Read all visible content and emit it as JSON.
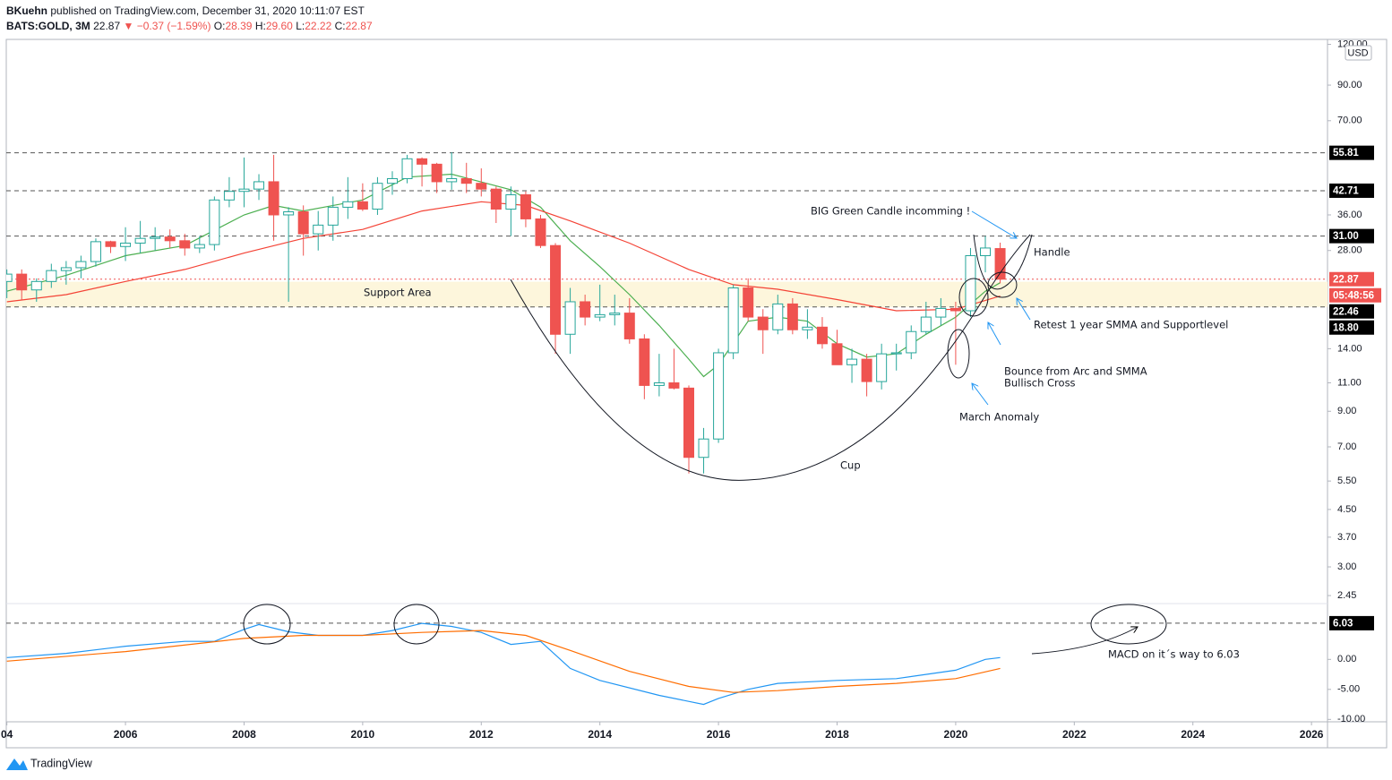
{
  "header": {
    "author": "BKuehn",
    "published": "published on TradingView.com, December 31, 2020 10:11:07 EST",
    "symbol": "BATS:GOLD, 3M",
    "last": "22.87",
    "change": "▼ −0.37 (−1.59%)",
    "ohlc": [
      {
        "label": "O:",
        "value": "28.39"
      },
      {
        "label": "H:",
        "value": "29.60"
      },
      {
        "label": "L:",
        "value": "22.22"
      },
      {
        "label": "C:",
        "value": "22.87"
      }
    ],
    "currency": "USD"
  },
  "footer": {
    "brand": "TradingView"
  },
  "chart_data": [
    {
      "type": "candlestick",
      "log_scale": true,
      "ylim": [
        2.33,
        123.5
      ],
      "xlim": [
        2003.99,
        2026.27
      ],
      "yticks": [
        {
          "value": 120,
          "label": "120.00"
        },
        {
          "value": 90,
          "label": "90.00"
        },
        {
          "value": 70,
          "label": "70.00"
        },
        {
          "value": 36,
          "label": "36.00"
        },
        {
          "value": 28,
          "label": "28.00"
        },
        {
          "value": 14,
          "label": "14.00"
        },
        {
          "value": 11,
          "label": "11.00"
        },
        {
          "value": 9,
          "label": "9.00"
        },
        {
          "value": 7,
          "label": "7.00"
        },
        {
          "value": 5.5,
          "label": "5.50"
        },
        {
          "value": 4.5,
          "label": "4.50"
        },
        {
          "value": 3.7,
          "label": "3.70"
        },
        {
          "value": 3,
          "label": "3.00"
        },
        {
          "value": 2.45,
          "label": "2.45"
        }
      ],
      "candles": {
        "up_color": "#26a69a",
        "down_color": "#ef5350",
        "x": [
          2004,
          2004.25,
          2004.5,
          2004.75,
          2005,
          2005.25,
          2005.5,
          2005.75,
          2006,
          2006.25,
          2006.5,
          2006.75,
          2007,
          2007.25,
          2007.5,
          2007.75,
          2008,
          2008.25,
          2008.5,
          2008.75,
          2009,
          2009.25,
          2009.5,
          2009.75,
          2010,
          2010.25,
          2010.5,
          2010.75,
          2011,
          2011.25,
          2011.5,
          2011.75,
          2012,
          2012.25,
          2012.5,
          2012.75,
          2013,
          2013.25,
          2013.5,
          2013.75,
          2014,
          2014.25,
          2014.5,
          2014.75,
          2015,
          2015.25,
          2015.5,
          2015.75,
          2016,
          2016.25,
          2016.5,
          2016.75,
          2017,
          2017.25,
          2017.5,
          2017.75,
          2018,
          2018.25,
          2018.5,
          2018.75,
          2019,
          2019.25,
          2019.5,
          2019.75,
          2020,
          2020.25,
          2020.5,
          2020.75
        ],
        "open": [
          22.5,
          23.7,
          21.2,
          22.5,
          24.3,
          24.8,
          25.9,
          29.8,
          28.8,
          29.5,
          30.5,
          30.8,
          30.0,
          28.5,
          29.2,
          40.0,
          42.5,
          43.2,
          45.5,
          36.0,
          36.8,
          31.5,
          33.5,
          38.0,
          39.5,
          37.5,
          45.0,
          46.5,
          53.5,
          51.5,
          45.5,
          46.5,
          45.0,
          43.2,
          37.5,
          41.5,
          35.0,
          29.0,
          15.5,
          19.5,
          17.5,
          17.8,
          18.0,
          15.0,
          10.8,
          11.0,
          10.6,
          6.5,
          7.4,
          13.6,
          21.5,
          17.5,
          16.0,
          19.2,
          16.0,
          16.3,
          14.5,
          12.5,
          13.0,
          11.1,
          13.5,
          13.6,
          15.8,
          17.5,
          18.6,
          18.3,
          27.0,
          28.39
        ],
        "high": [
          24.5,
          24.5,
          23.0,
          25.5,
          26.0,
          27.0,
          30.5,
          30.0,
          33.0,
          34.5,
          33.0,
          32.5,
          31.5,
          31.0,
          41.0,
          47.0,
          54.0,
          48.0,
          55.0,
          38.0,
          38.5,
          37.0,
          41.0,
          47.0,
          45.0,
          47.0,
          49.0,
          55.0,
          54.0,
          52.0,
          56.0,
          52.0,
          50.0,
          44.0,
          44.0,
          42.5,
          36.0,
          29.5,
          21.5,
          20.5,
          22.0,
          20.5,
          20.0,
          15.5,
          13.5,
          14.0,
          10.8,
          8.0,
          14.0,
          22.0,
          23.0,
          18.5,
          20.5,
          20.0,
          18.5,
          17.5,
          16.0,
          14.0,
          13.5,
          14.5,
          14.5,
          16.5,
          19.5,
          20.0,
          19.5,
          28.5,
          31.0,
          29.6
        ],
        "low": [
          20.0,
          19.8,
          19.5,
          21.5,
          22.0,
          23.0,
          25.0,
          27.5,
          26.0,
          27.5,
          28.0,
          28.5,
          27.0,
          27.5,
          28.0,
          38.0,
          38.0,
          40.0,
          30.0,
          19.5,
          27.0,
          28.0,
          30.0,
          35.0,
          37.0,
          36.0,
          41.5,
          45.0,
          44.0,
          42.0,
          43.0,
          42.0,
          41.0,
          34.0,
          31.0,
          33.0,
          28.5,
          13.5,
          13.5,
          16.5,
          17.0,
          16.5,
          14.5,
          9.8,
          10.0,
          10.5,
          5.8,
          5.8,
          7.2,
          13.0,
          17.0,
          13.5,
          15.5,
          15.5,
          15.0,
          14.0,
          12.5,
          11.0,
          10.0,
          10.5,
          12.0,
          13.0,
          15.5,
          16.5,
          12.5,
          17.5,
          24.0,
          22.22
        ],
        "close": [
          23.7,
          21.2,
          22.5,
          24.3,
          24.8,
          25.9,
          29.8,
          28.8,
          29.5,
          30.5,
          30.8,
          30.0,
          28.5,
          29.2,
          40.0,
          42.5,
          43.2,
          45.5,
          36.0,
          36.8,
          31.5,
          33.5,
          38.0,
          39.5,
          37.5,
          45.0,
          46.5,
          53.5,
          51.5,
          45.5,
          46.5,
          45.0,
          43.2,
          37.5,
          41.5,
          35.0,
          29.0,
          15.5,
          19.5,
          17.5,
          17.8,
          18.0,
          15.0,
          10.8,
          11.0,
          10.6,
          6.5,
          7.4,
          13.6,
          21.5,
          17.5,
          16.0,
          19.2,
          16.0,
          16.3,
          14.5,
          12.5,
          13.0,
          11.1,
          13.5,
          13.6,
          15.8,
          17.5,
          18.6,
          18.3,
          27.0,
          28.5,
          22.87
        ]
      },
      "series": [
        {
          "color": "#4caf50",
          "x": [
            2004,
            2005,
            2006,
            2007,
            2008,
            2008.5,
            2009,
            2010,
            2010.75,
            2011.5,
            2012.5,
            2013,
            2013.5,
            2014,
            2014.5,
            2015,
            2015.5,
            2015.75,
            2016,
            2016.5,
            2017,
            2017.5,
            2018,
            2018.5,
            2019,
            2019.5,
            2020,
            2020.5,
            2020.75
          ],
          "values": [
            21.0,
            23.5,
            27.0,
            29.0,
            36.0,
            38.5,
            37.0,
            40.0,
            47.0,
            48.0,
            43.0,
            38.0,
            30.0,
            25.0,
            20.5,
            16.5,
            13.0,
            11.5,
            12.5,
            17.0,
            17.5,
            17.0,
            14.5,
            13.2,
            13.5,
            15.5,
            17.5,
            21.0,
            22.3
          ]
        },
        {
          "color": "#f44336",
          "x": [
            2004,
            2005,
            2006,
            2007,
            2008,
            2009,
            2010,
            2011,
            2012,
            2012.75,
            2013.5,
            2014.5,
            2015.5,
            2016.25,
            2017,
            2018,
            2019,
            2020,
            2020.75
          ],
          "values": [
            19.5,
            20.5,
            22.5,
            24.5,
            27.5,
            30.5,
            32.5,
            37.0,
            39.5,
            38.5,
            34.5,
            29.5,
            24.5,
            22.0,
            21.3,
            19.8,
            18.3,
            18.5,
            20.3
          ]
        }
      ],
      "levels": [
        {
          "value": 55.81,
          "style": "dashed",
          "color": "#000000"
        },
        {
          "value": 42.71,
          "style": "dashed",
          "color": "#000000"
        },
        {
          "value": 31,
          "label": "31.00",
          "style": "dashed",
          "color": "#000000"
        },
        {
          "value": 22.87,
          "style": "dotted",
          "color": "#ef5350"
        },
        {
          "value": 22.46,
          "style": "none",
          "color": "#000000"
        },
        {
          "value": 18.8,
          "label": "18.80",
          "style": "dashed",
          "color": "#000000"
        }
      ],
      "countdown": "05:48:56",
      "band": {
        "label": "Support Area",
        "from": 18.8,
        "to": 22.46,
        "color": "#fdf6dc"
      },
      "annotations": [
        "BIG Green Candle incomming !",
        "Handle",
        "Retest 1 year SMMA and Supportlevel",
        "Bounce from Arc and SMMA",
        "Bullisch Cross",
        "March Anomaly",
        "Cup"
      ]
    },
    {
      "type": "line",
      "ylim": [
        -10.4,
        9.0
      ],
      "xlim": [
        2003.99,
        2026.27
      ],
      "yticks": [
        {
          "value": 0,
          "label": "0.00"
        },
        {
          "value": -5,
          "label": "-5.00"
        },
        {
          "value": -10,
          "label": "-10.00"
        }
      ],
      "xticks": [
        {
          "value": 2004,
          "label": "04"
        },
        2006,
        2008,
        2010,
        2012,
        2014,
        2016,
        2018,
        2020,
        2022,
        2024,
        2026
      ],
      "series": [
        {
          "color": "#2196f3",
          "x": [
            2004,
            2005,
            2006,
            2007,
            2007.5,
            2008,
            2008.25,
            2008.75,
            2009.25,
            2010,
            2010.5,
            2011,
            2011.5,
            2012,
            2012.5,
            2013,
            2013.5,
            2014,
            2015,
            2015.75,
            2016,
            2016.5,
            2017,
            2018,
            2019,
            2020,
            2020.5,
            2020.75
          ],
          "values": [
            0.3,
            1.0,
            2.2,
            3.0,
            3.0,
            5.0,
            5.8,
            4.6,
            4.0,
            4.0,
            4.8,
            6.0,
            5.5,
            4.5,
            2.5,
            3.0,
            -1.5,
            -3.5,
            -6.0,
            -7.5,
            -6.5,
            -5.0,
            -4.0,
            -3.5,
            -3.2,
            -1.8,
            0.0,
            0.3
          ]
        },
        {
          "color": "#ff6d00",
          "x": [
            2004,
            2006,
            2008,
            2009,
            2010,
            2011,
            2012,
            2012.75,
            2013.5,
            2014.5,
            2015.5,
            2016.25,
            2017,
            2018,
            2019,
            2020,
            2020.75
          ],
          "values": [
            -0.3,
            1.3,
            3.5,
            4.0,
            4.0,
            4.5,
            4.8,
            4.0,
            1.5,
            -2.0,
            -4.5,
            -5.5,
            -5.2,
            -4.5,
            -4.0,
            -3.2,
            -1.5
          ]
        }
      ],
      "levels": [
        {
          "value": 6.03,
          "style": "dashed",
          "color": "#000000"
        }
      ],
      "annotations": [
        "MACD on it´s way to 6.03"
      ]
    }
  ]
}
